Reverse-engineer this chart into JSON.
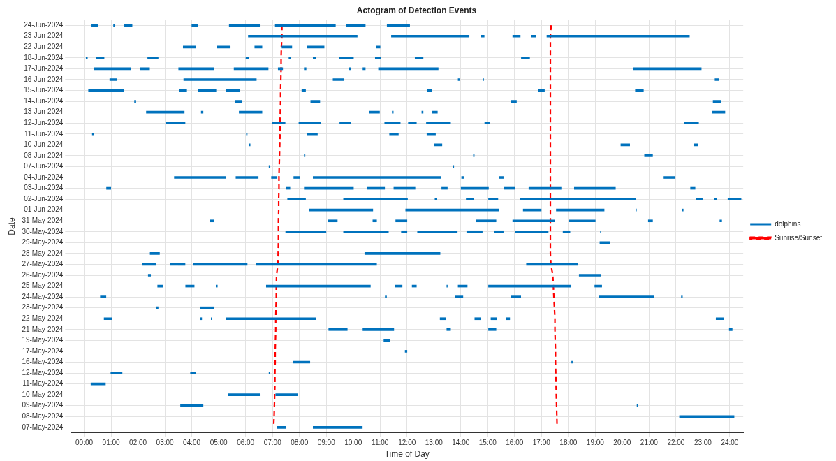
{
  "chart_data": {
    "type": "bar",
    "orientation": "horizontal",
    "title": "Actogram of Detection Events",
    "xlabel": "Time of Day",
    "ylabel": "Date",
    "categories": [
      "24-Jun-2024",
      "23-Jun-2024",
      "22-Jun-2024",
      "18-Jun-2024",
      "17-Jun-2024",
      "16-Jun-2024",
      "15-Jun-2024",
      "14-Jun-2024",
      "13-Jun-2024",
      "12-Jun-2024",
      "11-Jun-2024",
      "10-Jun-2024",
      "08-Jun-2024",
      "07-Jun-2024",
      "04-Jun-2024",
      "03-Jun-2024",
      "02-Jun-2024",
      "01-Jun-2024",
      "31-May-2024",
      "30-May-2024",
      "29-May-2024",
      "28-May-2024",
      "27-May-2024",
      "26-May-2024",
      "25-May-2024",
      "24-May-2024",
      "23-May-2024",
      "22-May-2024",
      "21-May-2024",
      "19-May-2024",
      "17-May-2024",
      "16-May-2024",
      "12-May-2024",
      "11-May-2024",
      "10-May-2024",
      "09-May-2024",
      "08-May-2024",
      "07-May-2024"
    ],
    "xlim": [
      -0.5,
      24.5
    ],
    "xticks": [
      {
        "value": 0,
        "label": "00:00"
      },
      {
        "value": 1,
        "label": "01:00"
      },
      {
        "value": 2,
        "label": "02:00"
      },
      {
        "value": 3,
        "label": "03:00"
      },
      {
        "value": 4,
        "label": "04:00"
      },
      {
        "value": 5,
        "label": "05:00"
      },
      {
        "value": 6,
        "label": "06:00"
      },
      {
        "value": 7,
        "label": "07:00"
      },
      {
        "value": 8,
        "label": "08:00"
      },
      {
        "value": 9,
        "label": "09:00"
      },
      {
        "value": 10,
        "label": "10:00"
      },
      {
        "value": 11,
        "label": "11:00"
      },
      {
        "value": 12,
        "label": "12:00"
      },
      {
        "value": 13,
        "label": "13:00"
      },
      {
        "value": 14,
        "label": "14:00"
      },
      {
        "value": 15,
        "label": "15:00"
      },
      {
        "value": 16,
        "label": "16:00"
      },
      {
        "value": 17,
        "label": "17:00"
      },
      {
        "value": 18,
        "label": "18:00"
      },
      {
        "value": 19,
        "label": "19:00"
      },
      {
        "value": 20,
        "label": "20:00"
      },
      {
        "value": 21,
        "label": "21:00"
      },
      {
        "value": 22,
        "label": "22:00"
      },
      {
        "value": 23,
        "label": "23:00"
      },
      {
        "value": 24,
        "label": "24:00"
      }
    ],
    "grid": true,
    "legend": "right",
    "series": [
      {
        "name": "dolphins",
        "color": "#0072bd",
        "base": [
          0.28,
          6.1,
          3.68,
          0.07,
          0.37,
          0.95,
          0.16,
          1.87,
          2.31,
          3.03,
          0.3,
          6.13,
          8.18,
          6.87,
          3.35,
          0.83,
          7.56,
          8.37,
          4.69,
          7.49,
          19.17,
          2.45,
          2.17,
          2.38,
          2.73,
          0.6,
          2.68,
          0.74,
          9.09,
          11.14,
          11.93,
          7.77,
          0.99,
          0.25,
          5.36,
          3.58,
          22.13,
          7.17
        ],
        "values": [
          0.23,
          4.05,
          0.46,
          0.05,
          1.36,
          0.25,
          1.32,
          0.05,
          1.41,
          0.72,
          0.05,
          0.04,
          0.03,
          0.04,
          1.92,
          0.16,
          0.67,
          2.36,
          0.12,
          1.5,
          0.37,
          0.35,
          0.49,
          0.09,
          0.18,
          0.21,
          0.07,
          0.28,
          0.69,
          0.21,
          0.07,
          0.62,
          0.42,
          0.54,
          1.16,
          0.84,
          2.03,
          0.32
        ]
      },
      {
        "color": "#0072bd",
        "base": [
          1.09,
          11.42,
          4.95,
          0.46,
          2.08,
          3.7,
          3.54,
          5.62,
          4.35,
          7.0,
          6.03,
          13.02,
          14.47,
          13.71,
          5.64,
          7.51,
          9.64,
          11.95,
          9.06,
          9.64,
          null,
          10.43,
          3.19,
          18.4,
          3.77,
          11.19,
          4.32,
          4.32,
          10.36,
          null,
          null,
          18.12,
          3.95,
          null,
          7.12,
          20.55,
          null,
          8.51
        ],
        "values": [
          0.04,
          2.89,
          0.48,
          0.28,
          0.35,
          2.7,
          0.27,
          0.25,
          0.07,
          0.47,
          0.03,
          0.28,
          0.03,
          0.03,
          0.83,
          0.14,
          2.38,
          3.47,
          0.35,
          1.67,
          null,
          2.8,
          0.56,
          0.81,
          0.32,
          0.05,
          0.51,
          0.05,
          1.15,
          null,
          null,
          0.03,
          0.19,
          null,
          0.81,
          0.03,
          null,
          1.83
        ]
      },
      {
        "color": "#0072bd",
        "base": [
          1.5,
          14.75,
          6.34,
          2.36,
          3.51,
          9.25,
          4.23,
          8.42,
          5.76,
          7.98,
          8.3,
          19.95,
          20.83,
          null,
          6.96,
          8.18,
          13.04,
          16.32,
          10.73,
          11.79,
          null,
          null,
          4.07,
          null,
          4.9,
          13.78,
          null,
          4.72,
          13.48,
          null,
          null,
          null,
          6.87,
          null,
          null,
          null,
          null,
          null
        ],
        "values": [
          0.28,
          0.12,
          0.27,
          0.39,
          1.32,
          0.39,
          0.67,
          0.34,
          0.85,
          0.81,
          0.37,
          0.33,
          0.3,
          null,
          0.21,
          1.83,
          0.07,
          0.67,
          0.14,
          0.21,
          null,
          null,
          1.99,
          null,
          0.05,
          0.3,
          null,
          0.02,
          0.14,
          null,
          null,
          null,
          0.02,
          null,
          null,
          null,
          null,
          null
        ]
      },
      {
        "color": "#0072bd",
        "base": [
          4.0,
          15.93,
          7.35,
          6.01,
          5.57,
          13.9,
          5.27,
          15.86,
          10.61,
          9.5,
          11.35,
          22.66,
          null,
          null,
          7.79,
          10.52,
          14.2,
          17.55,
          11.58,
          12.39,
          null,
          null,
          6.4,
          null,
          6.77,
          15.86,
          null,
          5.27,
          15.03,
          null,
          null,
          null,
          null,
          null,
          null,
          null,
          null,
          null
        ],
        "values": [
          0.21,
          0.28,
          0.37,
          0.12,
          1.27,
          0.07,
          0.51,
          0.21,
          0.37,
          0.4,
          0.33,
          0.16,
          null,
          null,
          0.21,
          0.65,
          0.27,
          1.78,
          0.42,
          1.48,
          null,
          null,
          4.47,
          null,
          3.87,
          0.37,
          null,
          3.33,
          0.28,
          null,
          null,
          null,
          null,
          null,
          null,
          null,
          null,
          null
        ]
      },
      {
        "color": "#0072bd",
        "base": [
          5.39,
          16.63,
          8.28,
          7.61,
          7.21,
          14.82,
          8.09,
          23.38,
          11.45,
          11.17,
          12.74,
          null,
          null,
          null,
          8.51,
          11.51,
          15.03,
          20.51,
          14.57,
          14.22,
          null,
          null,
          16.44,
          null,
          11.56,
          19.14,
          null,
          13.23,
          23.98,
          null,
          null,
          null,
          null,
          null,
          null,
          null,
          null,
          null
        ],
        "values": [
          1.13,
          0.16,
          0.64,
          0.07,
          0.17,
          0.03,
          0.14,
          0.3,
          0.04,
          0.58,
          0.32,
          null,
          null,
          null,
          4.76,
          0.79,
          0.35,
          0.02,
          0.74,
          0.58,
          null,
          null,
          1.9,
          null,
          0.26,
          2.04,
          null,
          0.2,
          0.11,
          null,
          null,
          null,
          null,
          null,
          null,
          null,
          null,
          null
        ]
      },
      {
        "color": "#0072bd",
        "base": [
          7.1,
          17.2,
          10.87,
          8.51,
          8.18,
          23.45,
          12.76,
          null,
          12.55,
          12.05,
          null,
          null,
          null,
          null,
          14.03,
          13.29,
          16.21,
          22.24,
          15.93,
          15.24,
          null,
          null,
          null,
          null,
          12.19,
          22.2,
          null,
          14.52,
          null,
          null,
          null,
          null,
          null,
          null,
          null,
          null,
          null,
          null
        ],
        "values": [
          2.24,
          5.3,
          0.13,
          0.09,
          0.07,
          0.15,
          0.16,
          null,
          0.05,
          0.3,
          null,
          null,
          null,
          null,
          0.07,
          0.21,
          4.28,
          0.03,
          1.57,
          0.34,
          null,
          null,
          null,
          null,
          0.16,
          0.04,
          null,
          0.21,
          null,
          null,
          null,
          null,
          null,
          null,
          null,
          null,
          null,
          null
        ]
      },
      {
        "color": "#0072bd",
        "base": [
          9.73,
          null,
          null,
          9.48,
          9.85,
          null,
          16.88,
          null,
          12.95,
          12.72,
          null,
          null,
          null,
          null,
          15.42,
          14.01,
          22.75,
          null,
          18.03,
          16.02,
          null,
          null,
          null,
          null,
          13.48,
          null,
          null,
          15.12,
          null,
          null,
          null,
          null,
          null,
          null,
          null,
          null,
          null,
          null
        ],
        "values": [
          0.72,
          null,
          null,
          0.53,
          0.07,
          null,
          0.23,
          null,
          0.18,
          0.9,
          null,
          null,
          null,
          null,
          0.16,
          1.02,
          0.23,
          null,
          0.97,
          1.23,
          null,
          null,
          null,
          null,
          0.02,
          null,
          null,
          0.21,
          null,
          null,
          null,
          null,
          null,
          null,
          null,
          null,
          null,
          null
        ]
      },
      {
        "color": "#0072bd",
        "base": [
          11.26,
          null,
          null,
          10.82,
          10.36,
          null,
          20.49,
          null,
          23.35,
          14.89,
          null,
          null,
          null,
          null,
          21.55,
          15.61,
          23.42,
          null,
          20.97,
          17.8,
          null,
          null,
          null,
          null,
          13.9,
          null,
          null,
          15.7,
          null,
          null,
          null,
          null,
          null,
          null,
          null,
          null,
          null,
          null
        ],
        "values": [
          0.84,
          null,
          null,
          0.21,
          0.09,
          null,
          0.3,
          null,
          0.47,
          0.19,
          null,
          null,
          null,
          null,
          0.42,
          0.41,
          0.09,
          null,
          0.16,
          0.26,
          null,
          null,
          null,
          null,
          0.34,
          null,
          null,
          0.12,
          null,
          null,
          null,
          null,
          null,
          null,
          null,
          null,
          null,
          null
        ]
      },
      {
        "color": "#0072bd",
        "base": [
          null,
          null,
          null,
          12.3,
          10.94,
          null,
          null,
          null,
          null,
          22.31,
          null,
          null,
          null,
          null,
          null,
          16.53,
          23.93,
          null,
          23.63,
          19.19,
          null,
          null,
          null,
          null,
          15.03,
          null,
          null,
          23.49,
          null,
          null,
          null,
          null,
          null,
          null,
          null,
          null,
          null,
          null
        ],
        "values": [
          null,
          null,
          null,
          0.3,
          2.22,
          null,
          null,
          null,
          null,
          0.53,
          null,
          null,
          null,
          null,
          null,
          1.2,
          0.49,
          null,
          0.07,
          0.02,
          null,
          null,
          null,
          null,
          3.07,
          null,
          null,
          0.28,
          null,
          null,
          null,
          null,
          null,
          null,
          null,
          null,
          null,
          null
        ]
      },
      {
        "color": "#0072bd",
        "base": [
          null,
          null,
          null,
          16.25,
          20.42,
          null,
          null,
          null,
          null,
          null,
          null,
          null,
          null,
          null,
          null,
          18.22,
          null,
          null,
          null,
          null,
          null,
          null,
          null,
          null,
          18.98,
          null,
          null,
          null,
          null,
          null,
          null,
          null,
          null,
          null,
          null,
          null,
          null,
          null
        ],
        "values": [
          null,
          null,
          null,
          0.31,
          2.52,
          null,
          null,
          null,
          null,
          null,
          null,
          null,
          null,
          null,
          null,
          1.53,
          null,
          null,
          null,
          null,
          null,
          null,
          null,
          null,
          0.26,
          null,
          null,
          null,
          null,
          null,
          null,
          null,
          null,
          null,
          null,
          null,
          null,
          null
        ]
      },
      {
        "color": "#0072bd",
        "base": [
          null,
          null,
          null,
          null,
          null,
          null,
          null,
          null,
          null,
          null,
          null,
          null,
          null,
          null,
          null,
          22.54,
          null,
          null,
          null,
          null,
          null,
          null,
          null,
          null,
          null,
          null,
          null,
          null,
          null,
          null,
          null,
          null,
          null,
          null,
          null,
          null,
          null,
          null
        ],
        "values": [
          null,
          null,
          null,
          null,
          null,
          null,
          null,
          null,
          null,
          null,
          null,
          null,
          null,
          null,
          null,
          0.17,
          null,
          null,
          null,
          null,
          null,
          null,
          null,
          null,
          null,
          null,
          null,
          null,
          null,
          null,
          null,
          null,
          null,
          null,
          null,
          null,
          null,
          null
        ]
      },
      {
        "type": "line",
        "name": "Sunrise/Sunset",
        "color": "#ff0000",
        "line_style": "dashed",
        "values": [
          7.35,
          7.35,
          7.33,
          7.32,
          7.32,
          7.31,
          7.3,
          7.3,
          7.29,
          7.28,
          7.28,
          7.27,
          7.26,
          7.25,
          7.24,
          7.24,
          7.23,
          7.23,
          7.22,
          7.22,
          7.22,
          7.21,
          7.2,
          7.15,
          7.14,
          7.14,
          7.13,
          7.12,
          7.12,
          7.11,
          7.1,
          7.1,
          7.09,
          7.09,
          7.08,
          7.07,
          7.06,
          7.04
        ]
      },
      {
        "type": "line",
        "color": "#ff0000",
        "line_style": "dashed",
        "values": [
          17.36,
          17.33,
          17.33,
          17.33,
          17.33,
          17.33,
          17.33,
          17.33,
          17.33,
          17.33,
          17.33,
          17.33,
          17.33,
          17.33,
          17.33,
          17.33,
          17.33,
          17.33,
          17.33,
          17.33,
          17.33,
          17.33,
          17.35,
          17.42,
          17.44,
          17.46,
          17.48,
          17.5,
          17.5,
          17.51,
          17.52,
          17.52,
          17.53,
          17.54,
          17.55,
          17.56,
          17.57,
          17.58
        ]
      }
    ]
  }
}
